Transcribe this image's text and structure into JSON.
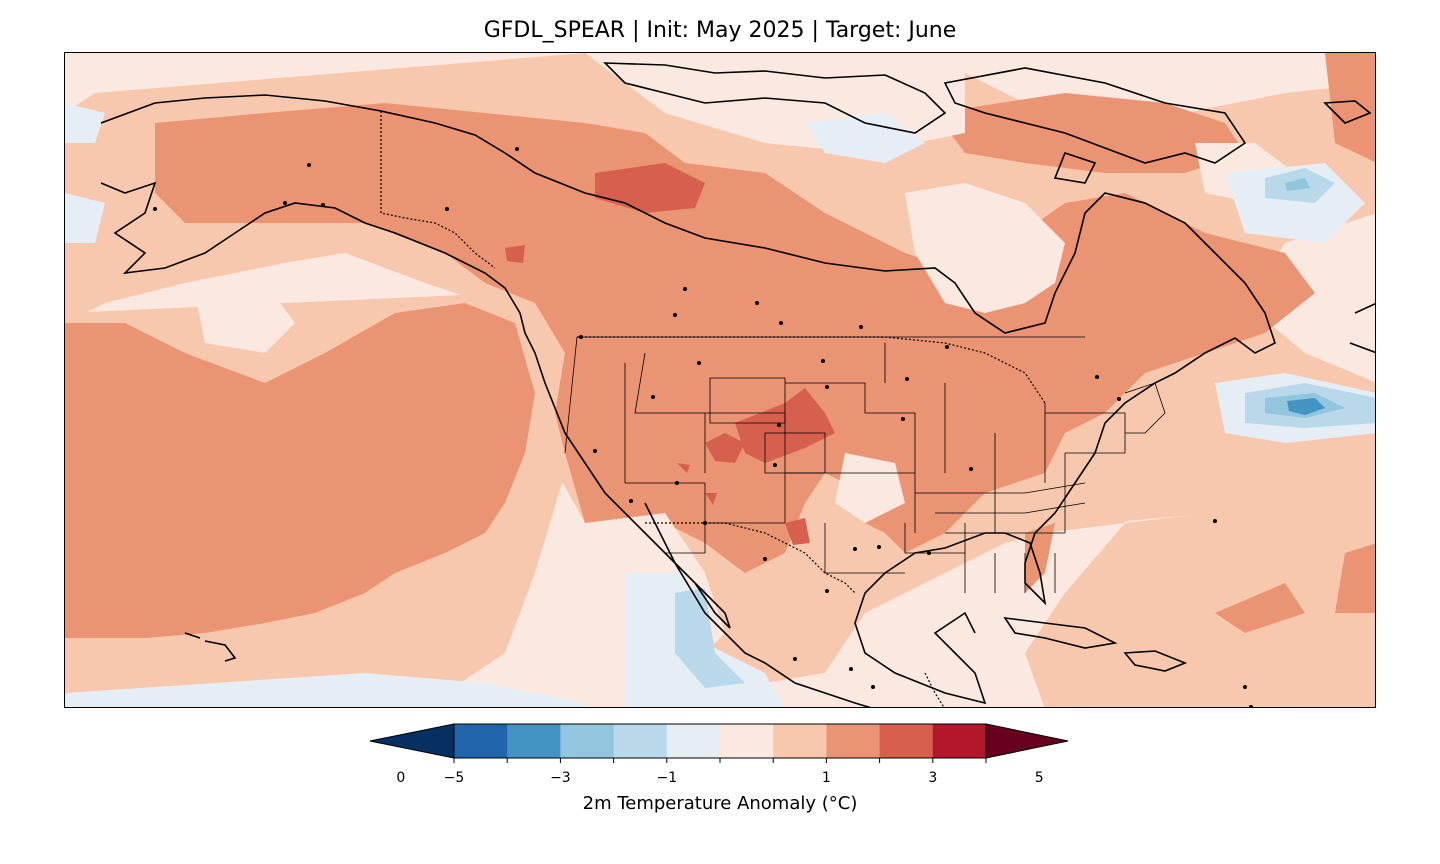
{
  "title": "GFDL_SPEAR | Init: May 2025 | Target: June",
  "colorbar": {
    "label": "2m Temperature Anomaly (°C)",
    "ticks": [
      "−5",
      "−3",
      "−1",
      "0",
      "1",
      "3",
      "5"
    ],
    "levels": [
      -5,
      -4,
      -3,
      -2,
      -1,
      -0.5,
      0.5,
      1,
      2,
      3,
      4,
      5
    ],
    "colors": [
      "#053061",
      "#2166ac",
      "#4393c3",
      "#92c5de",
      "#b9d8ea",
      "#e6eef5",
      "#fbe9e1",
      "#f8c8ae",
      "#eb9474",
      "#d6604d",
      "#b2182b",
      "#67001f"
    ],
    "extend": "both"
  },
  "map": {
    "region": "North America",
    "field": "2m temperature anomaly",
    "model": "GFDL_SPEAR",
    "init": "May 2025",
    "target": "June"
  }
}
